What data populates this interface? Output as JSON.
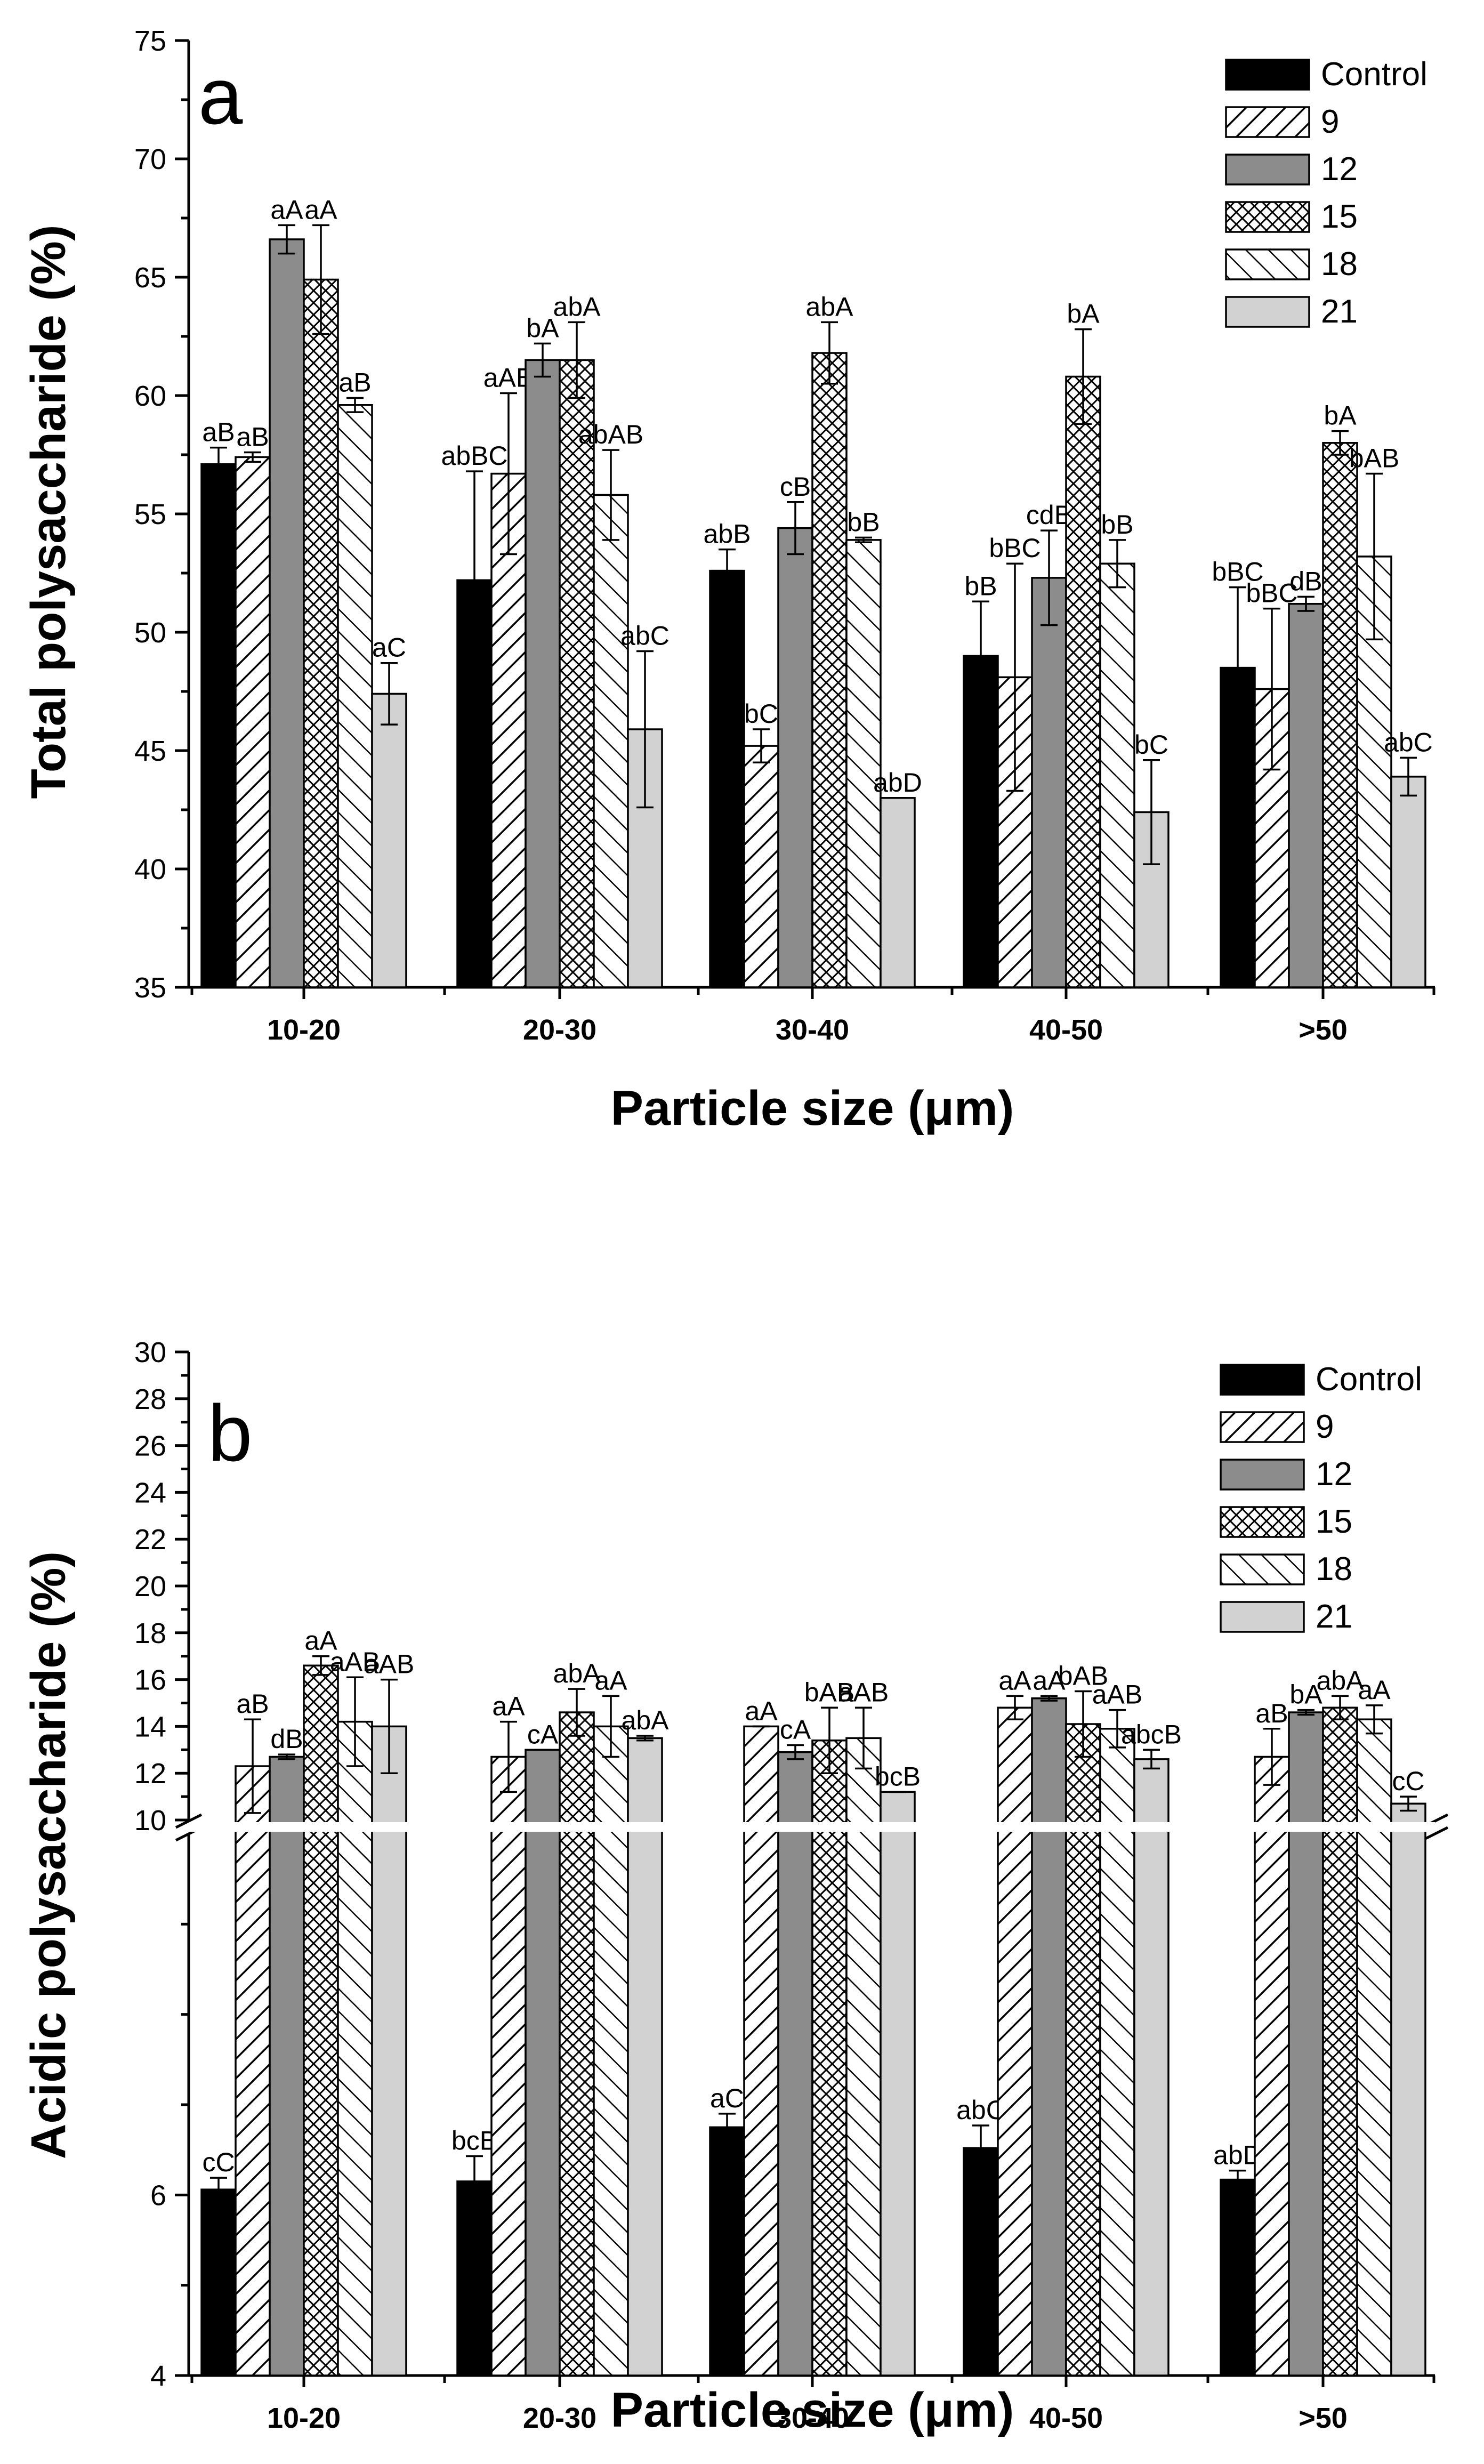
{
  "figure": {
    "panels": [
      "a",
      "b"
    ]
  },
  "chart_data": [
    {
      "type": "bar",
      "panel": "a",
      "title": "",
      "xlabel": "Particle size (μm)",
      "ylabel": "Total polysaccharide (%)",
      "ylim": [
        35,
        75
      ],
      "yticks": [
        "35",
        "40",
        "45",
        "50",
        "55",
        "60",
        "65",
        "70",
        "75"
      ],
      "categories": [
        "10-20",
        "20-30",
        "30-40",
        "40-50",
        ">50"
      ],
      "legend_position": "top-right",
      "series": [
        {
          "name": "Control",
          "pattern": "solid-black",
          "values": [
            57.1,
            52.2,
            52.6,
            49.0,
            48.5
          ],
          "errors": [
            0.7,
            4.6,
            0.9,
            2.3,
            3.4
          ],
          "labels": [
            "aB",
            "abBC",
            "abB",
            "bB",
            "bBC"
          ]
        },
        {
          "name": "9",
          "pattern": "hatch-right",
          "values": [
            57.4,
            56.7,
            45.2,
            48.1,
            47.6
          ],
          "errors": [
            0.2,
            3.4,
            0.7,
            4.8,
            3.4
          ],
          "labels": [
            "aB",
            "aAB",
            "bC",
            "bBC",
            "bBC"
          ]
        },
        {
          "name": "12",
          "pattern": "solid-gray",
          "values": [
            66.6,
            61.5,
            54.4,
            52.3,
            51.2
          ],
          "errors": [
            0.6,
            0.7,
            1.1,
            2.0,
            0.3
          ],
          "labels": [
            "aA",
            "bA",
            "cB",
            "cdB",
            "dB"
          ]
        },
        {
          "name": "15",
          "pattern": "crosshatch",
          "values": [
            64.9,
            61.5,
            61.8,
            60.8,
            58.0
          ],
          "errors": [
            2.3,
            1.6,
            1.3,
            2.0,
            0.5
          ],
          "labels": [
            "aA",
            "abA",
            "abA",
            "bA",
            "bA"
          ]
        },
        {
          "name": "18",
          "pattern": "hatch-left",
          "values": [
            59.6,
            55.8,
            53.9,
            52.9,
            53.2
          ],
          "errors": [
            0.3,
            1.9,
            0.1,
            1.0,
            3.5
          ],
          "labels": [
            "aB",
            "abAB",
            "bB",
            "bB",
            "bAB"
          ]
        },
        {
          "name": "21",
          "pattern": "light-gray",
          "values": [
            47.4,
            45.9,
            43.0,
            42.4,
            43.9
          ],
          "errors": [
            1.3,
            3.3,
            0.0,
            2.2,
            0.8
          ],
          "labels": [
            "aC",
            "abC",
            "abD",
            "bC",
            "abC"
          ]
        }
      ]
    },
    {
      "type": "bar",
      "panel": "b",
      "title": "",
      "xlabel": "Particle size (μm)",
      "ylabel": "Acidic polysaccharide (%)",
      "y_axis_break": {
        "lower_range": [
          4,
          10
        ],
        "upper_range": [
          10,
          30
        ]
      },
      "yticks_lower": [
        "4",
        "6"
      ],
      "yticks_upper": [
        "10",
        "12",
        "14",
        "16",
        "18",
        "20",
        "22",
        "24",
        "26",
        "28",
        "30"
      ],
      "categories": [
        "10-20",
        "20-30",
        "30-40",
        "40-50",
        ">50"
      ],
      "legend_position": "top-right",
      "series": [
        {
          "name": "Control",
          "pattern": "solid-black",
          "values": [
            6.06,
            6.15,
            6.75,
            6.52,
            6.17
          ],
          "errors": [
            0.13,
            0.28,
            0.15,
            0.25,
            0.1
          ],
          "labels": [
            "cC",
            "bcB",
            "aC",
            "abC",
            "abD"
          ]
        },
        {
          "name": "9",
          "pattern": "hatch-right",
          "values": [
            12.3,
            12.7,
            14.0,
            14.8,
            12.7
          ],
          "errors": [
            2.0,
            1.5,
            0.0,
            0.5,
            1.2
          ],
          "labels": [
            "aB",
            "aA",
            "aA",
            "aA",
            "aB"
          ]
        },
        {
          "name": "12",
          "pattern": "solid-gray",
          "values": [
            12.7,
            13.0,
            12.9,
            15.2,
            14.6
          ],
          "errors": [
            0.1,
            0.0,
            0.3,
            0.1,
            0.1
          ],
          "labels": [
            "dB",
            "cA",
            "cA",
            "aA",
            "bA"
          ]
        },
        {
          "name": "15",
          "pattern": "crosshatch",
          "values": [
            16.6,
            14.6,
            13.4,
            14.1,
            14.8
          ],
          "errors": [
            0.4,
            1.0,
            1.4,
            1.4,
            0.5
          ],
          "labels": [
            "aA",
            "abA",
            "bAB",
            "bAB",
            "abA"
          ]
        },
        {
          "name": "18",
          "pattern": "hatch-left",
          "values": [
            14.2,
            14.0,
            13.5,
            13.9,
            14.3
          ],
          "errors": [
            1.9,
            1.3,
            1.3,
            0.8,
            0.6
          ],
          "labels": [
            "aAB",
            "aA",
            "aAB",
            "aAB",
            "aA"
          ]
        },
        {
          "name": "21",
          "pattern": "light-gray",
          "values": [
            14.0,
            13.5,
            11.2,
            12.6,
            10.7
          ],
          "errors": [
            2.0,
            0.1,
            0.0,
            0.4,
            0.3
          ],
          "labels": [
            "aAB",
            "abA",
            "bcB",
            "abcB",
            "cC"
          ]
        }
      ]
    }
  ]
}
